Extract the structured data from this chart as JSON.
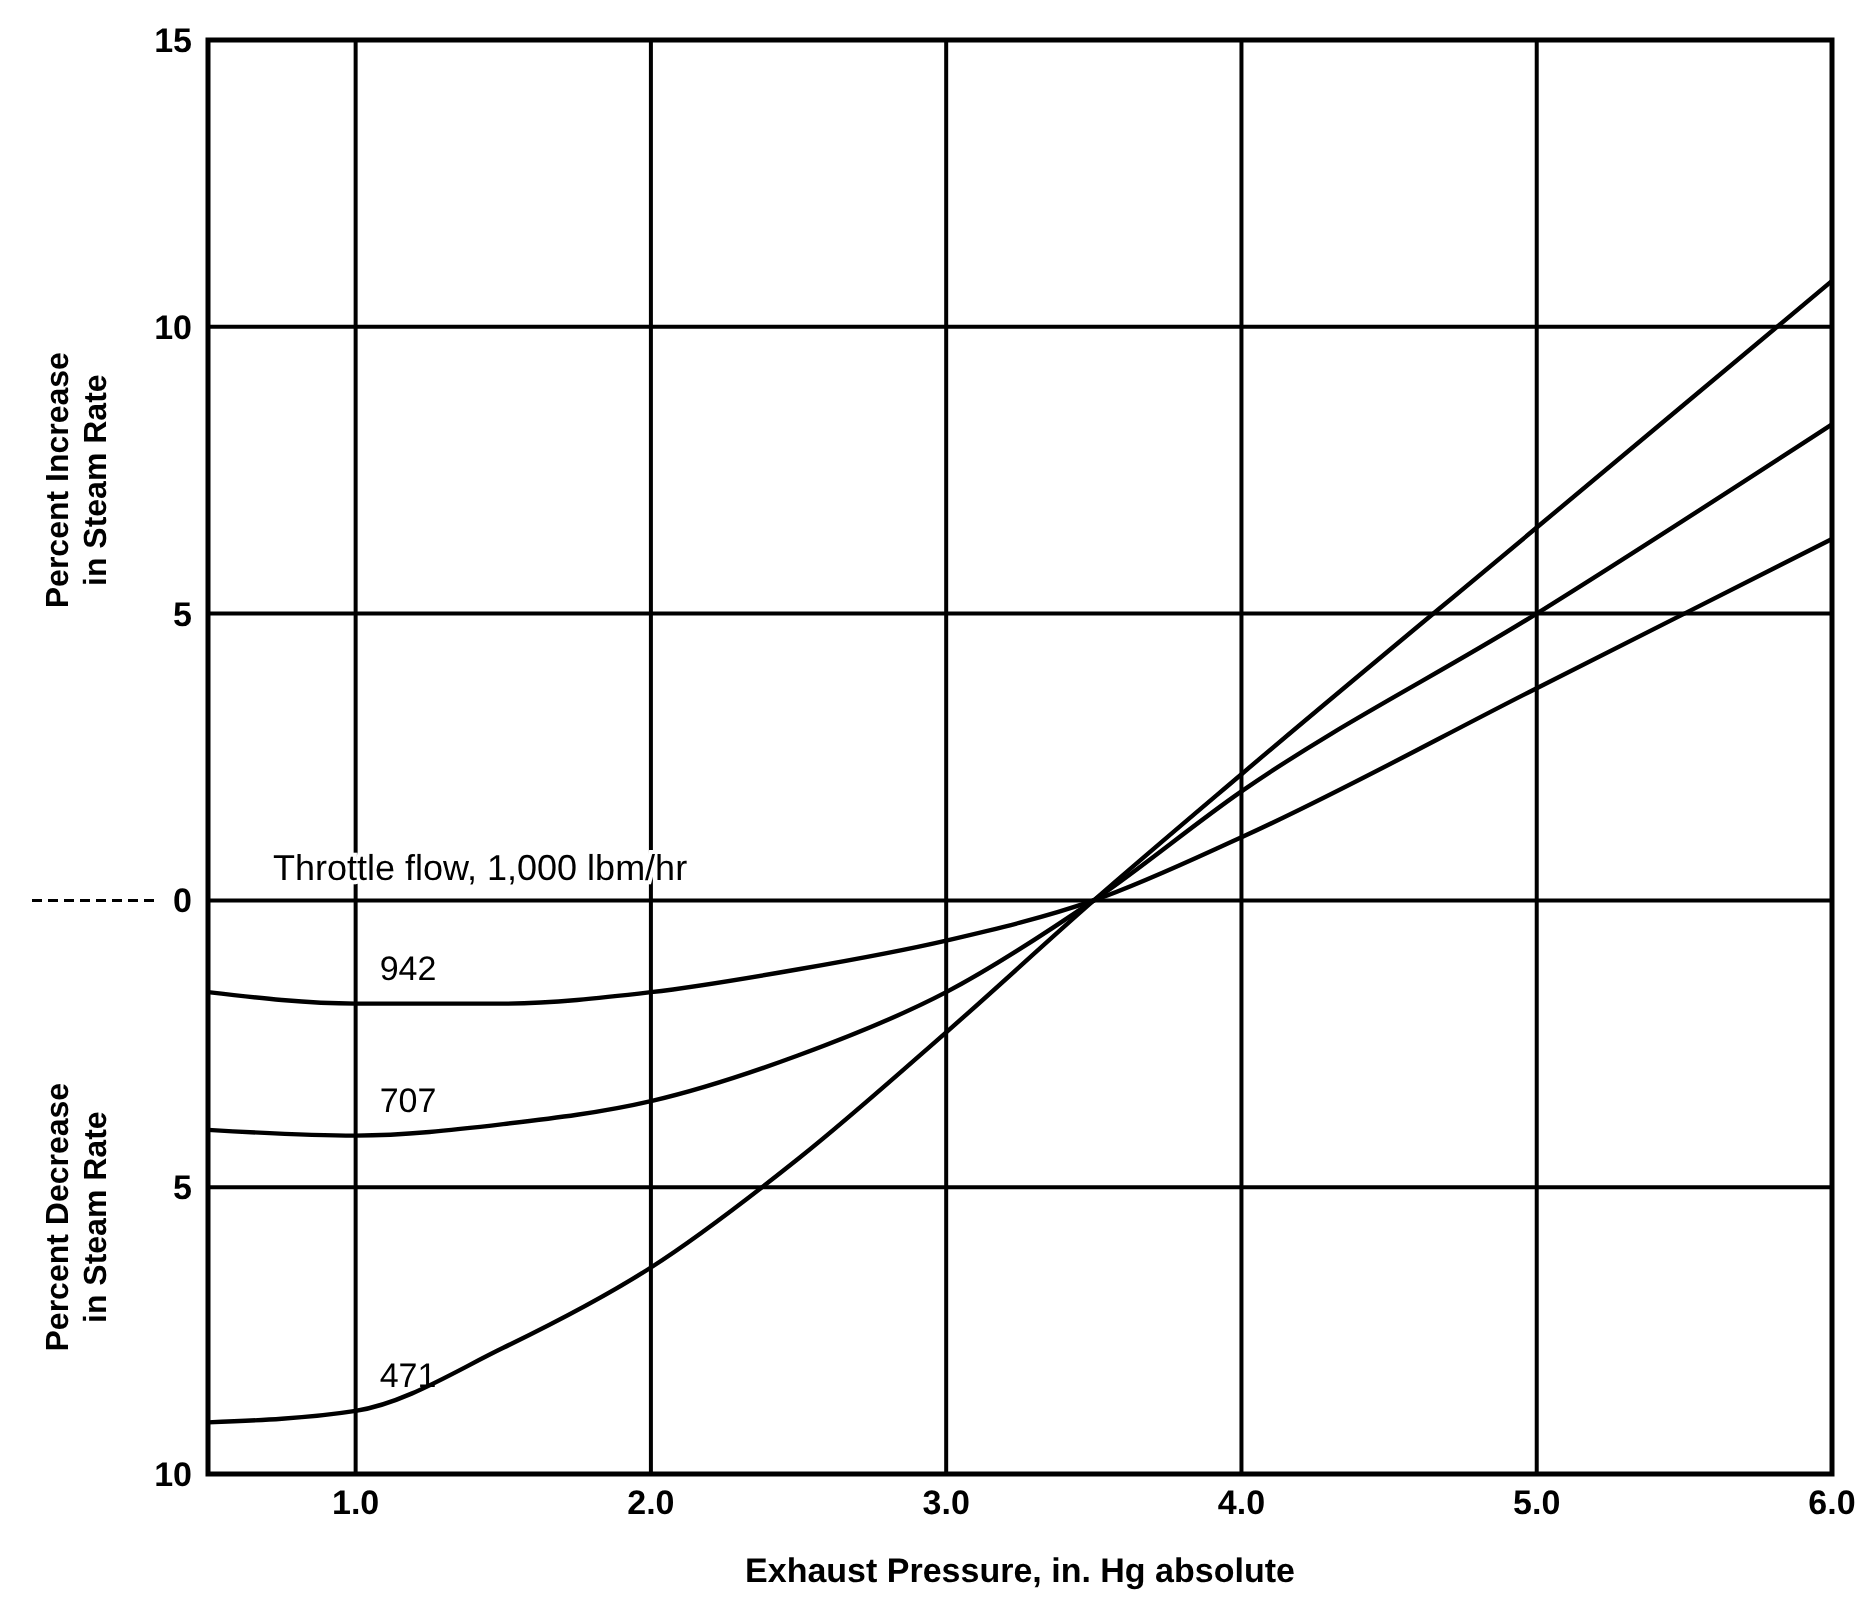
{
  "chart_data": {
    "type": "line",
    "xlabel": "Exhaust Pressure, in. Hg absolute",
    "ylabel": "Percent Increase in Steam Rate",
    "legend_title": "Throttle flow, 1,000 lbm/hr",
    "annotations": [
      "Percent Decrease in Steam Rate"
    ],
    "x": [
      0.5,
      1.0,
      1.5,
      2.0,
      2.5,
      3.0,
      3.5,
      4.0,
      5.0,
      6.0
    ],
    "series": [
      {
        "name": "942",
        "color": "#000000",
        "values": [
          -1.6,
          -1.8,
          -1.8,
          -1.6,
          -1.2,
          -0.7,
          0,
          1.1,
          3.7,
          6.3
        ]
      },
      {
        "name": "707",
        "color": "#000000",
        "values": [
          -4.0,
          -4.1,
          -3.9,
          -3.5,
          -2.7,
          -1.6,
          0,
          1.9,
          5.0,
          8.3
        ]
      },
      {
        "name": "471",
        "color": "#000000",
        "values": [
          -9.1,
          -8.9,
          -7.8,
          -6.4,
          -4.5,
          -2.3,
          0,
          2.2,
          6.5,
          10.8
        ]
      }
    ],
    "xlim": [
      0.5,
      6
    ],
    "xticks": [
      {
        "value": 1,
        "label": "1.0"
      },
      {
        "value": 2,
        "label": "2.0"
      },
      {
        "value": 3,
        "label": "3.0"
      },
      {
        "value": 4,
        "label": "4.0"
      },
      {
        "value": 5,
        "label": "5.0"
      },
      {
        "value": 6,
        "label": "6.0"
      }
    ],
    "ylim": [
      -10,
      15
    ],
    "yticks": [
      {
        "value": -10,
        "label": "10"
      },
      {
        "value": -5,
        "label": "5"
      },
      0,
      5,
      10,
      15
    ],
    "grid": true,
    "marker": "none",
    "line_style": "solid"
  }
}
